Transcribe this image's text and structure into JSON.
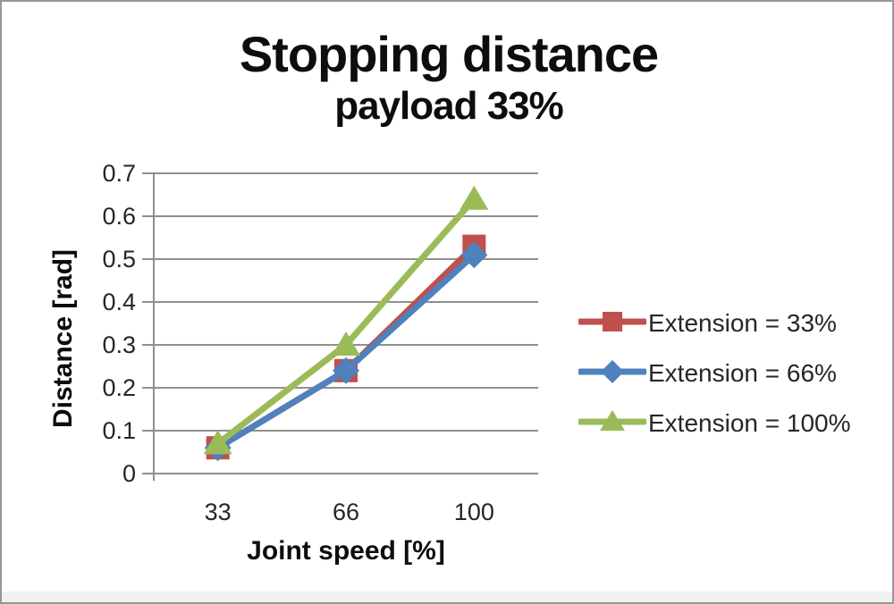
{
  "window": {
    "background": "#ffffff",
    "border_color": "#979797"
  },
  "chart_data": {
    "type": "line",
    "title": "Stopping distance",
    "subtitle": "payload 33%",
    "xlabel": "Joint speed [%]",
    "ylabel": "Distance [rad]",
    "categories": [
      "33",
      "66",
      "100"
    ],
    "yticks": [
      "0",
      "0.1",
      "0.2",
      "0.3",
      "0.4",
      "0.5",
      "0.6",
      "0.7"
    ],
    "ylim": [
      0,
      0.7
    ],
    "grid": true,
    "legend_position": "right",
    "axis_color": "#8f8f8f",
    "grid_color": "#8f8f8f",
    "tick_label_color": "#262626",
    "series": [
      {
        "name": "Extension = 33%",
        "color": "#C0504D",
        "marker": "square",
        "values": [
          0.06,
          0.24,
          0.53
        ]
      },
      {
        "name": "Extension = 66%",
        "color": "#4F81BD",
        "marker": "diamond",
        "values": [
          0.06,
          0.24,
          0.51
        ]
      },
      {
        "name": "Extension = 100%",
        "color": "#9BBB59",
        "marker": "triangle",
        "values": [
          0.07,
          0.3,
          0.64
        ]
      }
    ]
  }
}
